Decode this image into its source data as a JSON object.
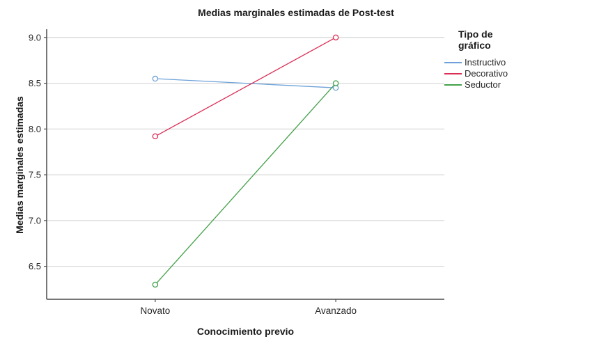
{
  "chart_data": {
    "type": "line",
    "title": "Medias marginales estimadas de Post-test",
    "xlabel": "Conocimiento previo",
    "ylabel": "Medias marginales estimadas",
    "categories": [
      "Novato",
      "Avanzado"
    ],
    "series": [
      {
        "name": "Instructivo",
        "values": [
          8.55,
          8.45
        ],
        "color": "#6EA1D8"
      },
      {
        "name": "Decorativo",
        "values": [
          7.92,
          9.0
        ],
        "color": "#DB2E55"
      },
      {
        "name": "Seductor",
        "values": [
          6.3,
          8.5
        ],
        "color": "#44A04A"
      }
    ],
    "yticks": [
      "9.0",
      "8.5",
      "8.0",
      "7.5",
      "7.0",
      "6.5"
    ],
    "ytick_values": [
      9.0,
      8.5,
      8.0,
      7.5,
      7.0,
      6.5
    ],
    "ylim": [
      6.14,
      9.09
    ],
    "grid": true,
    "marker": "open-circle",
    "legend": {
      "title": "Tipo de gráfico",
      "position": "right"
    }
  },
  "colors": {
    "gridline": "#D9D9D9",
    "axis": "#4A4A4A",
    "tick_text": "#262626",
    "background": "#FFFFFF"
  }
}
